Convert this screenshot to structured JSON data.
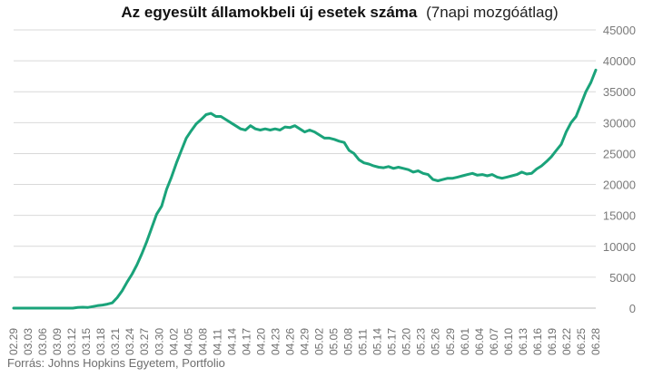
{
  "chart_data": {
    "type": "line",
    "title": "Az egyesült államokbeli új esetek száma",
    "subtitle": "(7napi mozgóátlag)",
    "source": "Forrás: Johns Hopkins Egyetem, Portfolio",
    "xlabel": "",
    "ylabel": "",
    "ylim": [
      0,
      45000
    ],
    "yticks": [
      0,
      5000,
      10000,
      15000,
      20000,
      25000,
      30000,
      35000,
      40000,
      45000
    ],
    "grid": true,
    "legend": "none",
    "line_color": "#1aa37a",
    "x_tick_labels": [
      "02.29",
      "03.03",
      "03.06",
      "03.09",
      "03.12",
      "03.15",
      "03.18",
      "03.21",
      "03.24",
      "03.27",
      "03.30",
      "04.02",
      "04.05",
      "04.08",
      "04.11",
      "04.14",
      "04.17",
      "04.20",
      "04.23",
      "04.26",
      "04.29",
      "05.02",
      "05.05",
      "05.08",
      "05.11",
      "05.14",
      "05.17",
      "05.20",
      "05.23",
      "05.26",
      "05.29",
      "06.01",
      "06.04",
      "06.07",
      "06.10",
      "06.13",
      "06.16",
      "06.19",
      "06.22",
      "06.25",
      "06.28"
    ],
    "series": [
      {
        "values": [
          0,
          0,
          0,
          0,
          0,
          0,
          0,
          0,
          0,
          0,
          0,
          0,
          0,
          100,
          150,
          100,
          250,
          400,
          500,
          650,
          850,
          1700,
          2800,
          4200,
          5500,
          7000,
          8800,
          10800,
          13000,
          15200,
          16500,
          19200,
          21200,
          23500,
          25500,
          27500,
          28700,
          29800,
          30500,
          31300,
          31500,
          31000,
          31000,
          30500,
          30000,
          29500,
          29000,
          28800,
          29500,
          29000,
          28800,
          29000,
          28800,
          29000,
          28800,
          29300,
          29200,
          29500,
          29000,
          28500,
          28800,
          28500,
          28000,
          27500,
          27500,
          27300,
          27000,
          26800,
          25500,
          25000,
          24000,
          23500,
          23300,
          23000,
          22800,
          22700,
          22900,
          22600,
          22800,
          22600,
          22400,
          22000,
          22200,
          21800,
          21600,
          20800,
          20600,
          20800,
          21000,
          21000,
          21200,
          21400,
          21600,
          21800,
          21500,
          21600,
          21400,
          21600,
          21200,
          21000,
          21200,
          21400,
          21600,
          22000,
          21700,
          21800,
          22500,
          23000,
          23700,
          24500,
          25500,
          26500,
          28500,
          30000,
          31000,
          33000,
          35000,
          36500,
          38500
        ]
      }
    ]
  }
}
